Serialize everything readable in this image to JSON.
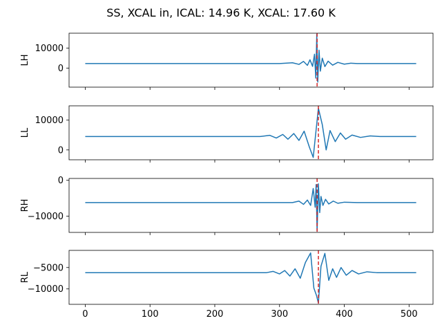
{
  "figure": {
    "title": "SS, XCAL in, ICAL: 14.96 K, XCAL: 17.60 K"
  },
  "chart_data": [
    {
      "type": "line",
      "ylabel": "LH",
      "xlim": [
        -25,
        537
      ],
      "ylim": [
        -9500,
        17500
      ],
      "xticks": [
        0,
        100,
        200,
        300,
        400,
        500
      ],
      "show_xtick_labels": false,
      "yticks": [
        0,
        10000
      ],
      "ytick_labels": [
        "0",
        "10000"
      ],
      "baseline": 2300,
      "peak_index": 358,
      "series": [
        {
          "color": "#1f77b4",
          "points": [
            [
              0,
              2300
            ],
            [
              300,
              2300
            ],
            [
              320,
              2700
            ],
            [
              330,
              1900
            ],
            [
              337,
              3400
            ],
            [
              343,
              1400
            ],
            [
              347,
              4200
            ],
            [
              351,
              900
            ],
            [
              354,
              7000
            ],
            [
              356,
              -5000
            ],
            [
              357.5,
              17000
            ],
            [
              359,
              -7000
            ],
            [
              361,
              9000
            ],
            [
              363,
              -1500
            ],
            [
              366,
              5000
            ],
            [
              370,
              800
            ],
            [
              375,
              3500
            ],
            [
              382,
              1500
            ],
            [
              390,
              2900
            ],
            [
              400,
              2000
            ],
            [
              410,
              2500
            ],
            [
              420,
              2300
            ],
            [
              511,
              2300
            ]
          ]
        }
      ],
      "vline": {
        "x": 358,
        "color": "#d62728",
        "style": "dashed"
      }
    },
    {
      "type": "line",
      "ylabel": "LL",
      "xlim": [
        -25,
        537
      ],
      "ylim": [
        -3300,
        14800
      ],
      "xticks": [
        0,
        100,
        200,
        300,
        400,
        500
      ],
      "show_xtick_labels": false,
      "yticks": [
        0,
        10000
      ],
      "ytick_labels": [
        "0",
        "10000"
      ],
      "baseline": 4500,
      "peak_index": 360,
      "series": [
        {
          "color": "#1f77b4",
          "points": [
            [
              0,
              4500
            ],
            [
              270,
              4500
            ],
            [
              285,
              4900
            ],
            [
              295,
              4000
            ],
            [
              305,
              5200
            ],
            [
              313,
              3600
            ],
            [
              322,
              5500
            ],
            [
              330,
              3200
            ],
            [
              338,
              6300
            ],
            [
              346,
              1000
            ],
            [
              352,
              -2500
            ],
            [
              360,
              14000
            ],
            [
              366,
              8500
            ],
            [
              372,
              0
            ],
            [
              378,
              6500
            ],
            [
              386,
              2800
            ],
            [
              394,
              5700
            ],
            [
              402,
              3600
            ],
            [
              412,
              5000
            ],
            [
              425,
              4200
            ],
            [
              440,
              4700
            ],
            [
              455,
              4500
            ],
            [
              511,
              4500
            ]
          ]
        }
      ],
      "vline": {
        "x": 360,
        "color": "#d62728",
        "style": "dashed"
      }
    },
    {
      "type": "line",
      "ylabel": "RH",
      "xlim": [
        -25,
        537
      ],
      "ylim": [
        -14500,
        500
      ],
      "xticks": [
        0,
        100,
        200,
        300,
        400,
        500
      ],
      "show_xtick_labels": false,
      "yticks": [
        -10000,
        0
      ],
      "ytick_labels": [
        "−10000",
        "0"
      ],
      "baseline": -6200,
      "peak_index": 358,
      "series": [
        {
          "color": "#1f77b4",
          "points": [
            [
              0,
              -6200
            ],
            [
              320,
              -6200
            ],
            [
              330,
              -5800
            ],
            [
              337,
              -6700
            ],
            [
              343,
              -5500
            ],
            [
              348,
              -7000
            ],
            [
              352,
              -2300
            ],
            [
              355,
              -7500
            ],
            [
              356.5,
              -1200
            ],
            [
              358,
              -14200
            ],
            [
              360,
              -1000
            ],
            [
              362,
              -9000
            ],
            [
              364,
              -4500
            ],
            [
              367,
              -7000
            ],
            [
              371,
              -5300
            ],
            [
              376,
              -6600
            ],
            [
              383,
              -5800
            ],
            [
              390,
              -6400
            ],
            [
              400,
              -6100
            ],
            [
              420,
              -6200
            ],
            [
              511,
              -6200
            ]
          ]
        }
      ],
      "vline": {
        "x": 358,
        "color": "#d62728",
        "style": "dashed"
      }
    },
    {
      "type": "line",
      "ylabel": "RL",
      "xlim": [
        -25,
        537
      ],
      "ylim": [
        -13600,
        -1000
      ],
      "xticks": [
        0,
        100,
        200,
        300,
        400,
        500
      ],
      "show_xtick_labels": true,
      "xtick_labels": [
        "0",
        "100",
        "200",
        "300",
        "400",
        "500"
      ],
      "yticks": [
        -10000,
        -5000
      ],
      "ytick_labels": [
        "−10000",
        "−5000"
      ],
      "baseline": -6200,
      "peak_index": 360,
      "series": [
        {
          "color": "#1f77b4",
          "points": [
            [
              0,
              -6200
            ],
            [
              280,
              -6200
            ],
            [
              290,
              -5900
            ],
            [
              300,
              -6500
            ],
            [
              308,
              -5700
            ],
            [
              316,
              -7000
            ],
            [
              324,
              -5300
            ],
            [
              332,
              -7500
            ],
            [
              340,
              -3800
            ],
            [
              348,
              -1600
            ],
            [
              353,
              -9800
            ],
            [
              357,
              -11500
            ],
            [
              360,
              -13300
            ],
            [
              364,
              -4700
            ],
            [
              370,
              -1700
            ],
            [
              376,
              -8000
            ],
            [
              382,
              -5300
            ],
            [
              388,
              -7300
            ],
            [
              395,
              -5000
            ],
            [
              403,
              -6800
            ],
            [
              412,
              -5700
            ],
            [
              422,
              -6500
            ],
            [
              435,
              -6000
            ],
            [
              450,
              -6200
            ],
            [
              511,
              -6200
            ]
          ]
        }
      ],
      "vline": {
        "x": 360,
        "color": "#d62728",
        "style": "dashed"
      }
    }
  ]
}
